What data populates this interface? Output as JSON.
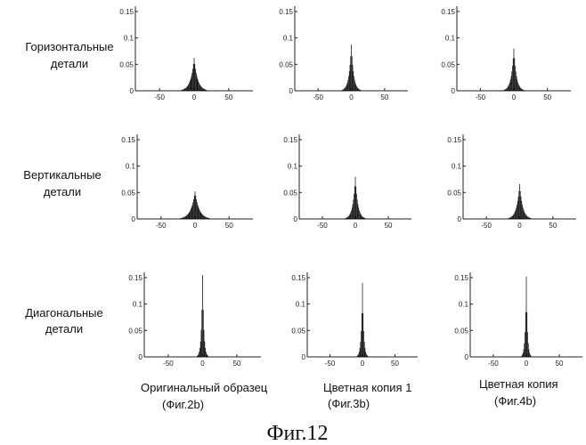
{
  "figure_title": "Фиг.12",
  "row_labels": [
    [
      "Горизонтальные",
      "детали"
    ],
    [
      "Вертикальные",
      "детали"
    ],
    [
      "Диагональные",
      "детали"
    ]
  ],
  "column_labels": [
    [
      "Оригинальный образец",
      "(Фиг.2b)"
    ],
    [
      "Цветная копия 1",
      "(Фиг.3b)"
    ],
    [
      "Цветная копия",
      "(Фиг.4b)"
    ]
  ],
  "chart_data": [
    {
      "type": "bar",
      "row": "Горизонтальные детали",
      "column": "Оригинальный образец",
      "peak": 0.062,
      "width": 5.0,
      "xlim": [
        -85,
        85
      ],
      "ylim": [
        0,
        0.16
      ],
      "xticks": [
        -50,
        0,
        50
      ],
      "yticks": [
        0,
        0.05,
        0.1,
        0.15
      ]
    },
    {
      "type": "bar",
      "row": "Горизонтальные детали",
      "column": "Цветная копия 1",
      "peak": 0.087,
      "width": 3.5,
      "xlim": [
        -85,
        85
      ],
      "ylim": [
        0,
        0.16
      ],
      "xticks": [
        -50,
        0,
        50
      ],
      "yticks": [
        0,
        0.05,
        0.1,
        0.15
      ]
    },
    {
      "type": "bar",
      "row": "Горизонтальные детали",
      "column": "Цветная копия",
      "peak": 0.08,
      "width": 3.8,
      "xlim": [
        -85,
        85
      ],
      "ylim": [
        0,
        0.16
      ],
      "xticks": [
        -50,
        0,
        50
      ],
      "yticks": [
        0,
        0.05,
        0.1,
        0.15
      ]
    },
    {
      "type": "bar",
      "row": "Вертикальные детали",
      "column": "Оригинальный образец",
      "peak": 0.052,
      "width": 6.0,
      "xlim": [
        -85,
        85
      ],
      "ylim": [
        0,
        0.16
      ],
      "xticks": [
        -50,
        0,
        50
      ],
      "yticks": [
        0,
        0.05,
        0.1,
        0.15
      ]
    },
    {
      "type": "bar",
      "row": "Вертикальные детали",
      "column": "Цветная копия 1",
      "peak": 0.08,
      "width": 3.8,
      "xlim": [
        -85,
        85
      ],
      "ylim": [
        0,
        0.16
      ],
      "xticks": [
        -50,
        0,
        50
      ],
      "yticks": [
        0,
        0.05,
        0.1,
        0.15
      ]
    },
    {
      "type": "bar",
      "row": "Вертикальные детали",
      "column": "Цветная копия",
      "peak": 0.066,
      "width": 4.5,
      "xlim": [
        -85,
        85
      ],
      "ylim": [
        0,
        0.16
      ],
      "xticks": [
        -50,
        0,
        50
      ],
      "yticks": [
        0,
        0.05,
        0.1,
        0.15
      ]
    },
    {
      "type": "bar",
      "row": "Диагональные детали",
      "column": "Оригинальный образец",
      "peak": 0.155,
      "width": 1.8,
      "xlim": [
        -85,
        85
      ],
      "ylim": [
        0,
        0.16
      ],
      "xticks": [
        -50,
        0,
        50
      ],
      "yticks": [
        0,
        0.05,
        0.1,
        0.15
      ]
    },
    {
      "type": "bar",
      "row": "Диагональные детали",
      "column": "Цветная копия 1",
      "peak": 0.14,
      "width": 1.9,
      "xlim": [
        -85,
        85
      ],
      "ylim": [
        0,
        0.16
      ],
      "xticks": [
        -50,
        0,
        50
      ],
      "yticks": [
        0,
        0.05,
        0.1,
        0.15
      ]
    },
    {
      "type": "bar",
      "row": "Диагональные детали",
      "column": "Цветная копия",
      "peak": 0.152,
      "width": 1.7,
      "xlim": [
        -85,
        85
      ],
      "ylim": [
        0,
        0.16
      ],
      "xticks": [
        -50,
        0,
        50
      ],
      "yticks": [
        0,
        0.05,
        0.1,
        0.15
      ]
    }
  ]
}
